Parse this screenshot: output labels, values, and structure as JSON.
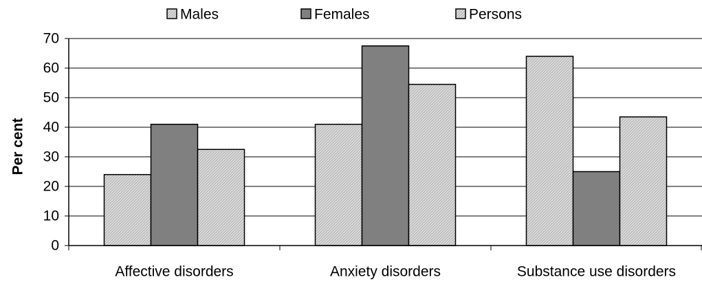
{
  "chart_data": {
    "type": "bar",
    "title": "",
    "xlabel": "",
    "ylabel": "Per cent",
    "ylim": [
      0,
      70
    ],
    "yticks": [
      0,
      10,
      20,
      30,
      40,
      50,
      60,
      70
    ],
    "categories": [
      "Affective disorders",
      "Anxiety disorders",
      "Substance use disorders"
    ],
    "series": [
      {
        "name": "Males",
        "values": [
          24,
          41,
          64
        ],
        "color": "#d4d4d4",
        "pattern": "hatched-light"
      },
      {
        "name": "Females",
        "values": [
          41,
          67.5,
          25
        ],
        "color": "#808080",
        "pattern": "solid-dark"
      },
      {
        "name": "Persons",
        "values": [
          32.5,
          54.5,
          43.5
        ],
        "color": "#d4d4d4",
        "pattern": "hatched-light"
      }
    ],
    "grid": true,
    "legend_position": "top"
  }
}
